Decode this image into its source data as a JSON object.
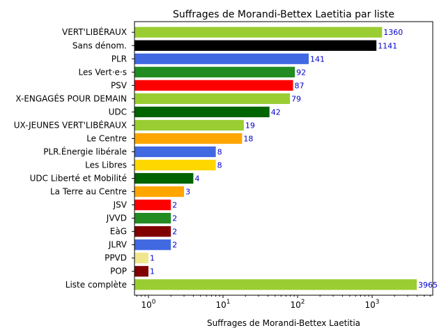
{
  "chart_data": {
    "type": "bar",
    "orientation": "horizontal",
    "title": "Suffrages de Morandi-Bettex Laetitia par liste",
    "xlabel": "Suffrages de Morandi-Bettex Laetitia",
    "ylabel": "",
    "xscale": "log",
    "xlim": [
      0.65,
      6500
    ],
    "xticks": [
      {
        "base": "10",
        "exp": "0",
        "value": 1
      },
      {
        "base": "10",
        "exp": "1",
        "value": 10
      },
      {
        "base": "10",
        "exp": "2",
        "value": 100
      },
      {
        "base": "10",
        "exp": "3",
        "value": 1000
      }
    ],
    "grid": false,
    "categories": [
      "VERT'LIBÉRAUX",
      "Sans dénom.",
      "PLR",
      "Les Vert·e·s",
      "PSV",
      "X-ENGAGÉS POUR DEMAIN",
      "UDC",
      "UX-JEUNES VERT'LIBÉRAUX",
      "Le Centre",
      "PLR.Énergie libérale",
      "Les Libres",
      "UDC Liberté et Mobilité",
      "La Terre au Centre",
      "JSV",
      "JVVD",
      "EàG",
      "JLRV",
      "PPVD",
      "POP",
      "Liste complète"
    ],
    "values": [
      1360,
      1141,
      141,
      92,
      87,
      79,
      42,
      19,
      18,
      8,
      8,
      4,
      3,
      2,
      2,
      2,
      2,
      1,
      1,
      3965
    ],
    "value_labels": [
      "1360",
      "1141",
      "141",
      "92",
      "87",
      "79",
      "42",
      "19",
      "18",
      "8",
      "8",
      "4",
      "3",
      "2",
      "2",
      "2",
      "2",
      "1",
      "1",
      "3965"
    ],
    "colors": [
      "#9acd32",
      "#000000",
      "#4169e1",
      "#228b22",
      "#ff0000",
      "#9acd32",
      "#006400",
      "#9acd32",
      "#ffa500",
      "#4169e1",
      "#ffd700",
      "#006400",
      "#ffa500",
      "#ff0000",
      "#228b22",
      "#800000",
      "#4169e1",
      "#f0e68c",
      "#800000",
      "#9acd32"
    ],
    "label_color": "#0000cc"
  }
}
